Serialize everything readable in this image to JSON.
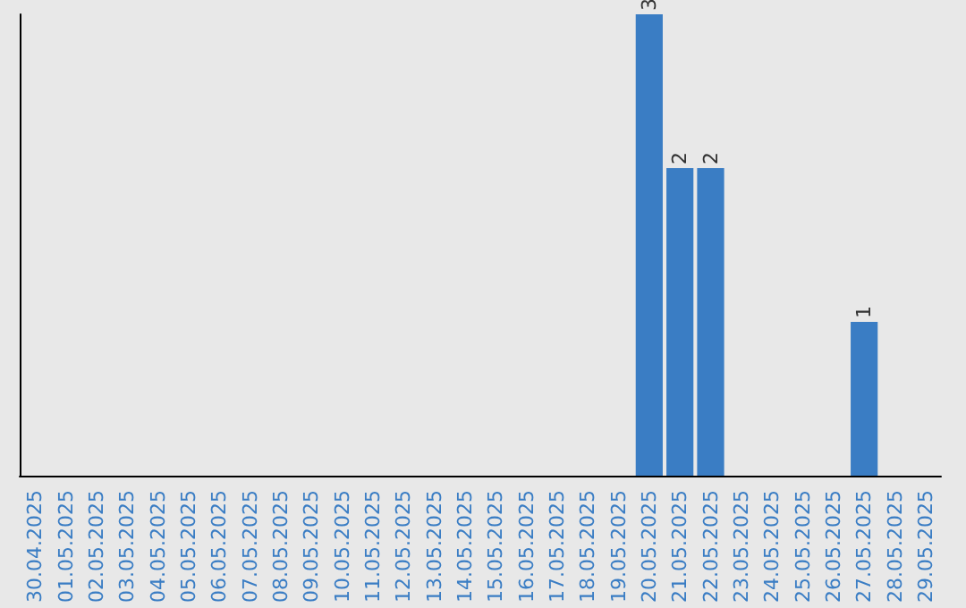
{
  "chart_data": {
    "type": "bar",
    "categories": [
      "30.04.2025",
      "01.05.2025",
      "02.05.2025",
      "03.05.2025",
      "04.05.2025",
      "05.05.2025",
      "06.05.2025",
      "07.05.2025",
      "08.05.2025",
      "09.05.2025",
      "10.05.2025",
      "11.05.2025",
      "12.05.2025",
      "13.05.2025",
      "14.05.2025",
      "15.05.2025",
      "16.05.2025",
      "17.05.2025",
      "18.05.2025",
      "19.05.2025",
      "20.05.2025",
      "21.05.2025",
      "22.05.2025",
      "23.05.2025",
      "24.05.2025",
      "25.05.2025",
      "26.05.2025",
      "27.05.2025",
      "28.05.2025",
      "29.05.2025"
    ],
    "values": [
      null,
      null,
      null,
      null,
      null,
      null,
      null,
      null,
      null,
      null,
      null,
      null,
      null,
      null,
      null,
      null,
      null,
      null,
      null,
      null,
      3,
      2,
      2,
      null,
      null,
      null,
      null,
      1,
      null,
      null
    ],
    "data_labels": true,
    "color": "#3a7dc4",
    "grid": false
  }
}
